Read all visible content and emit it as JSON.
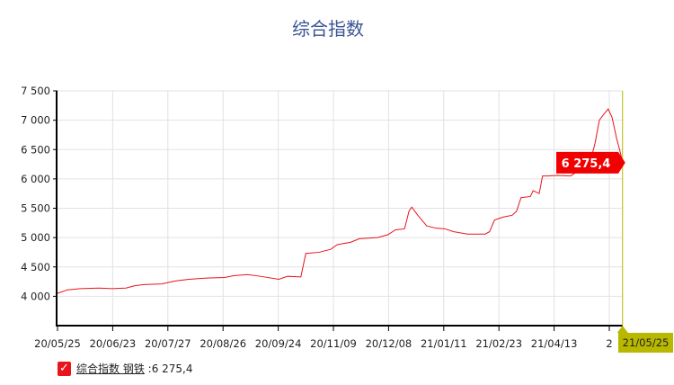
{
  "chart_data": {
    "type": "line",
    "title": "综合指数",
    "ylim": [
      3500,
      7500
    ],
    "yticks": [
      4000,
      4500,
      5000,
      5500,
      6000,
      6500,
      7000,
      7500
    ],
    "ytick_labels": [
      "4 000",
      "4 500",
      "5 000",
      "5 500",
      "6 000",
      "6 500",
      "7 000",
      "7 500"
    ],
    "xtick_labels": [
      "20/05/25",
      "20/06/23",
      "20/07/27",
      "20/08/26",
      "20/09/24",
      "20/11/09",
      "20/12/08",
      "21/01/11",
      "21/02/23",
      "21/04/13",
      "2"
    ],
    "grid": true,
    "series": [
      {
        "name": "综合指数 钢铁",
        "color": "#e8141b",
        "points": [
          [
            0,
            4050
          ],
          [
            0.18,
            4110
          ],
          [
            0.42,
            4130
          ],
          [
            0.75,
            4140
          ],
          [
            0.99,
            4130
          ],
          [
            1.24,
            4140
          ],
          [
            1.4,
            4180
          ],
          [
            1.56,
            4200
          ],
          [
            1.89,
            4210
          ],
          [
            2.13,
            4260
          ],
          [
            2.38,
            4290
          ],
          [
            2.7,
            4310
          ],
          [
            3.03,
            4320
          ],
          [
            3.19,
            4350
          ],
          [
            3.44,
            4370
          ],
          [
            3.68,
            4340
          ],
          [
            4.01,
            4290
          ],
          [
            4.17,
            4340
          ],
          [
            4.41,
            4330
          ],
          [
            4.5,
            4730
          ],
          [
            4.74,
            4750
          ],
          [
            4.95,
            4800
          ],
          [
            5.07,
            4880
          ],
          [
            5.31,
            4920
          ],
          [
            5.47,
            4980
          ],
          [
            5.8,
            5000
          ],
          [
            5.99,
            5050
          ],
          [
            6.12,
            5130
          ],
          [
            6.29,
            5150
          ],
          [
            6.37,
            5450
          ],
          [
            6.42,
            5520
          ],
          [
            6.53,
            5380
          ],
          [
            6.69,
            5200
          ],
          [
            6.86,
            5160
          ],
          [
            7.02,
            5150
          ],
          [
            7.18,
            5100
          ],
          [
            7.43,
            5060
          ],
          [
            7.75,
            5060
          ],
          [
            7.83,
            5100
          ],
          [
            7.92,
            5300
          ],
          [
            8.08,
            5350
          ],
          [
            8.24,
            5380
          ],
          [
            8.32,
            5450
          ],
          [
            8.4,
            5680
          ],
          [
            8.57,
            5700
          ],
          [
            8.62,
            5800
          ],
          [
            8.73,
            5750
          ],
          [
            8.79,
            6050
          ],
          [
            8.89,
            6050
          ],
          [
            9.06,
            6060
          ],
          [
            9.3,
            6050
          ],
          [
            9.46,
            6150
          ],
          [
            9.67,
            6350
          ],
          [
            9.74,
            6600
          ],
          [
            9.82,
            7000
          ],
          [
            9.9,
            7100
          ],
          [
            9.98,
            7190
          ],
          [
            10.05,
            7050
          ],
          [
            10.13,
            6700
          ],
          [
            10.2,
            6450
          ],
          [
            10.24,
            6275.4
          ]
        ]
      }
    ],
    "crosshair": {
      "date_label": "21/05/25",
      "value_label": "6 275,4",
      "color": "#b8b800"
    },
    "legend": {
      "name": "综合指数 钢铁",
      "value": "6 275,4",
      "position": "bottom-left",
      "checked": true
    }
  }
}
